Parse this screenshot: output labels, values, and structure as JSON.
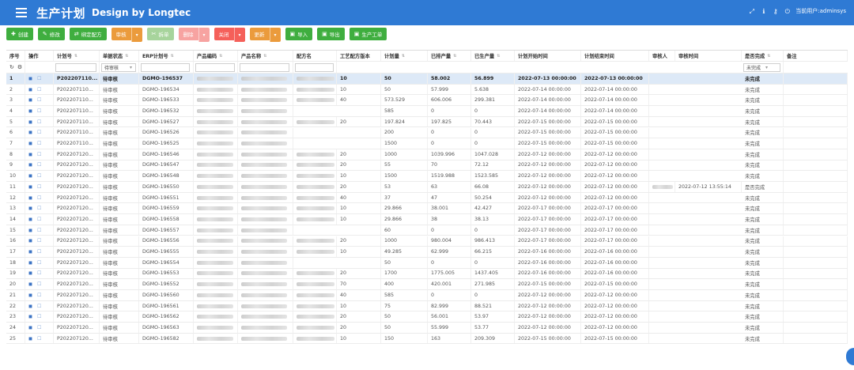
{
  "header": {
    "title": "生产计划",
    "subtitle": "Design by Longtec",
    "user_label": "当前用户:adminsys",
    "icons": [
      "expand-icon",
      "info-icon",
      "key-icon",
      "power-icon"
    ]
  },
  "toolbar": [
    {
      "label": "创建",
      "icon": "plus-icon",
      "glyph": "✚",
      "color": "green"
    },
    {
      "label": "修改",
      "icon": "edit-icon",
      "glyph": "✎",
      "color": "green"
    },
    {
      "label": "绑定配方",
      "icon": "link-icon",
      "glyph": "⇄",
      "color": "green"
    },
    {
      "label": "审核",
      "icon": "audit-icon",
      "glyph": "",
      "color": "orange",
      "dropdown": true
    },
    {
      "label": "拆单",
      "icon": "split-icon",
      "glyph": "✂",
      "color": "light-green"
    },
    {
      "label": "删除",
      "icon": "delete-icon",
      "glyph": "",
      "color": "light-red",
      "dropdown": true
    },
    {
      "label": "关闭",
      "icon": "close-icon",
      "glyph": "",
      "color": "red",
      "dropdown": true
    },
    {
      "label": "更新",
      "icon": "update-icon",
      "glyph": "",
      "color": "orange",
      "dropdown": true
    },
    {
      "label": "导入",
      "icon": "import-icon",
      "glyph": "▣",
      "color": "green"
    },
    {
      "label": "导出",
      "icon": "export-icon",
      "glyph": "▣",
      "color": "green"
    },
    {
      "label": "生产工单",
      "icon": "workorder-icon",
      "glyph": "▣",
      "color": "green"
    }
  ],
  "colors": {
    "header": "#2f7ad4",
    "green": "#3fae3f",
    "orange": "#eb9b3c",
    "red": "#f5605a"
  },
  "grid": {
    "columns": [
      "序号",
      "操作",
      "计划号",
      "单据状态",
      "ERP计划号",
      "产品编码",
      "产品名称",
      "配方名",
      "工艺配方版本",
      "计划量",
      "已排产量",
      "已生产量",
      "计划开始时间",
      "计划结束时间",
      "审核人",
      "审核时间",
      "是否完成",
      "备注"
    ],
    "filters": {
      "status": "待审核",
      "complete": "未完成"
    },
    "rows": [
      [
        "1",
        "P202207110...",
        "待审核",
        "DGMO-196537",
        "10",
        "50",
        "58.002",
        "56.899",
        "2022-07-13 00:00:00",
        "2022-07-13 00:00:00",
        "",
        "",
        "未完成"
      ],
      [
        "2",
        "P202207110...",
        "待审核",
        "DGMO-196534",
        "10",
        "50",
        "57.999",
        "5.638",
        "2022-07-14 00:00:00",
        "2022-07-14 00:00:00",
        "",
        "",
        "未完成"
      ],
      [
        "3",
        "P202207110...",
        "待审核",
        "DGMO-196533",
        "40",
        "573.529",
        "606.006",
        "299.381",
        "2022-07-14 00:00:00",
        "2022-07-14 00:00:00",
        "",
        "",
        "未完成"
      ],
      [
        "4",
        "P202207110...",
        "待审核",
        "DGMO-196532",
        "",
        "585",
        "0",
        "0",
        "2022-07-14 00:00:00",
        "2022-07-14 00:00:00",
        "",
        "",
        "未完成"
      ],
      [
        "5",
        "P202207110...",
        "待审核",
        "DGMO-196527",
        "20",
        "197.824",
        "197.825",
        "70.443",
        "2022-07-15 00:00:00",
        "2022-07-15 00:00:00",
        "",
        "",
        "未完成"
      ],
      [
        "6",
        "P202207110...",
        "待审核",
        "DGMO-196526",
        "",
        "200",
        "0",
        "0",
        "2022-07-15 00:00:00",
        "2022-07-15 00:00:00",
        "",
        "",
        "未完成"
      ],
      [
        "7",
        "P202207110...",
        "待审核",
        "DGMO-196525",
        "",
        "1500",
        "0",
        "0",
        "2022-07-15 00:00:00",
        "2022-07-15 00:00:00",
        "",
        "",
        "未完成"
      ],
      [
        "8",
        "P202207120...",
        "待审核",
        "DGMO-196546",
        "20",
        "1000",
        "1039.996",
        "1047.028",
        "2022-07-12 00:00:00",
        "2022-07-12 00:00:00",
        "",
        "",
        "未完成"
      ],
      [
        "9",
        "P202207120...",
        "待审核",
        "DGMO-196547",
        "20",
        "55",
        "70",
        "72.12",
        "2022-07-12 00:00:00",
        "2022-07-12 00:00:00",
        "",
        "",
        "未完成"
      ],
      [
        "10",
        "P202207120...",
        "待审核",
        "DGMO-196548",
        "10",
        "1500",
        "1519.988",
        "1523.585",
        "2022-07-12 00:00:00",
        "2022-07-12 00:00:00",
        "",
        "",
        "未完成"
      ],
      [
        "11",
        "P202207120...",
        "待审核",
        "DGMO-196550",
        "20",
        "53",
        "63",
        "66.08",
        "2022-07-12 00:00:00",
        "2022-07-12 00:00:00",
        "blur",
        "2022-07-12 13:55:14",
        "是否完成"
      ],
      [
        "12",
        "P202207120...",
        "待审核",
        "DGMO-196551",
        "40",
        "37",
        "47",
        "50.254",
        "2022-07-12 00:00:00",
        "2022-07-12 00:00:00",
        "",
        "",
        "未完成"
      ],
      [
        "13",
        "P202207120...",
        "待审核",
        "DGMO-196559",
        "10",
        "29.866",
        "38.001",
        "42.427",
        "2022-07-17 00:00:00",
        "2022-07-17 00:00:00",
        "",
        "",
        "未完成"
      ],
      [
        "14",
        "P202207120...",
        "待审核",
        "DGMO-196558",
        "10",
        "29.866",
        "38",
        "38.13",
        "2022-07-17 00:00:00",
        "2022-07-17 00:00:00",
        "",
        "",
        "未完成"
      ],
      [
        "15",
        "P202207120...",
        "待审核",
        "DGMO-196557",
        "",
        "60",
        "0",
        "0",
        "2022-07-17 00:00:00",
        "2022-07-17 00:00:00",
        "",
        "",
        "未完成"
      ],
      [
        "16",
        "P202207120...",
        "待审核",
        "DGMO-196556",
        "20",
        "1000",
        "980.004",
        "986.413",
        "2022-07-17 00:00:00",
        "2022-07-17 00:00:00",
        "",
        "",
        "未完成"
      ],
      [
        "17",
        "P202207120...",
        "待审核",
        "DGMO-196555",
        "10",
        "49.285",
        "62.999",
        "66.215",
        "2022-07-16 00:00:00",
        "2022-07-16 00:00:00",
        "",
        "",
        "未完成"
      ],
      [
        "18",
        "P202207120...",
        "待审核",
        "DGMO-196554",
        "",
        "50",
        "0",
        "0",
        "2022-07-16 00:00:00",
        "2022-07-16 00:00:00",
        "",
        "",
        "未完成"
      ],
      [
        "19",
        "P202207120...",
        "待审核",
        "DGMO-196553",
        "20",
        "1700",
        "1775.005",
        "1437.405",
        "2022-07-16 00:00:00",
        "2022-07-16 00:00:00",
        "",
        "",
        "未完成"
      ],
      [
        "20",
        "P202207120...",
        "待审核",
        "DGMO-196552",
        "70",
        "400",
        "420.001",
        "271.985",
        "2022-07-15 00:00:00",
        "2022-07-15 00:00:00",
        "",
        "",
        "未完成"
      ],
      [
        "21",
        "P202207120...",
        "待审核",
        "DGMO-196560",
        "40",
        "585",
        "0",
        "0",
        "2022-07-12 00:00:00",
        "2022-07-12 00:00:00",
        "",
        "",
        "未完成"
      ],
      [
        "22",
        "P202207120...",
        "待审核",
        "DGMO-196561",
        "10",
        "75",
        "82.999",
        "88.521",
        "2022-07-12 00:00:00",
        "2022-07-12 00:00:00",
        "",
        "",
        "未完成"
      ],
      [
        "23",
        "P202207120...",
        "待审核",
        "DGMO-196562",
        "20",
        "50",
        "56.001",
        "53.97",
        "2022-07-12 00:00:00",
        "2022-07-12 00:00:00",
        "",
        "",
        "未完成"
      ],
      [
        "24",
        "P202207120...",
        "待审核",
        "DGMO-196563",
        "20",
        "50",
        "55.999",
        "53.77",
        "2022-07-12 00:00:00",
        "2022-07-12 00:00:00",
        "",
        "",
        "未完成"
      ],
      [
        "25",
        "P202207120...",
        "待审核",
        "DGMO-196582",
        "10",
        "150",
        "163",
        "209.309",
        "2022-07-15 00:00:00",
        "2022-07-15 00:00:00",
        "",
        "",
        "未完成"
      ]
    ]
  }
}
